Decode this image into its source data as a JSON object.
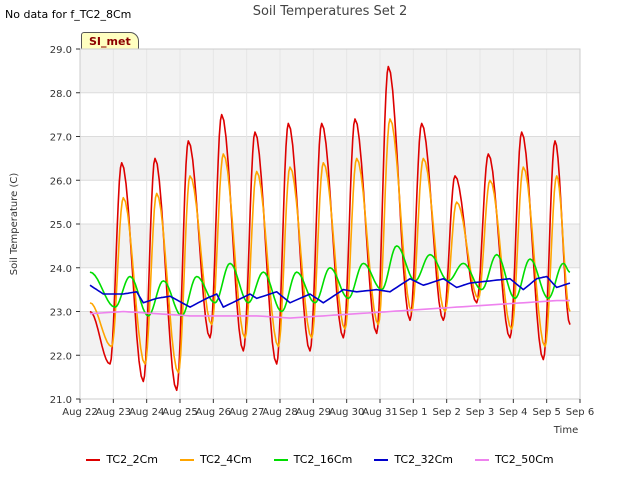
{
  "nodata_text": "No data for f_TC2_8Cm",
  "badge_text": "SI_met",
  "chart_data": {
    "type": "line",
    "title": "Soil Temperatures Set 2",
    "xlabel": "Time",
    "ylabel": "Soil Temperature (C)",
    "ylim": [
      21.0,
      29.0
    ],
    "yticks": [
      "21.0",
      "22.0",
      "23.0",
      "24.0",
      "25.0",
      "26.0",
      "27.0",
      "28.0",
      "29.0"
    ],
    "xticks": [
      "Aug 22",
      "Aug 23",
      "Aug 24",
      "Aug 25",
      "Aug 26",
      "Aug 27",
      "Aug 28",
      "Aug 29",
      "Aug 30",
      "Aug 31",
      "Sep 1",
      "Sep 2",
      "Sep 3",
      "Sep 4",
      "Sep 5",
      "Sep 6"
    ],
    "x_day_offset_start": 0.3,
    "grid": true,
    "legend_position": "bottom",
    "series": [
      {
        "name": "TC2_2Cm",
        "color": "#dd0000",
        "min_days": [
          0.6,
          1.6,
          2.6,
          3.6,
          4.6,
          5.6,
          6.6,
          7.6,
          8.6,
          9.6,
          10.6,
          11.6,
          12.6,
          13.6
        ],
        "min_vals": [
          21.8,
          21.4,
          21.2,
          22.4,
          22.1,
          21.8,
          22.1,
          22.4,
          22.5,
          22.8,
          22.8,
          23.2,
          22.4,
          21.9
        ],
        "max_days": [
          0.95,
          1.95,
          2.95,
          3.95,
          4.95,
          5.95,
          6.95,
          7.95,
          8.95,
          9.95,
          10.95,
          11.95,
          12.95,
          13.95
        ],
        "max_vals": [
          26.4,
          26.5,
          26.9,
          27.5,
          27.1,
          27.3,
          27.3,
          27.4,
          28.6,
          27.3,
          26.1,
          26.6,
          27.1,
          26.9
        ],
        "start": 23.0,
        "end": 22.7
      },
      {
        "name": "TC2_4Cm",
        "color": "#ffa500",
        "min_days": [
          0.65,
          1.65,
          2.65,
          3.65,
          4.65,
          5.65,
          6.65,
          7.65,
          8.65,
          9.65,
          10.65,
          11.65,
          12.65,
          13.65
        ],
        "min_vals": [
          22.2,
          21.8,
          21.6,
          22.7,
          22.4,
          22.2,
          22.4,
          22.6,
          22.7,
          23.0,
          23.0,
          23.3,
          22.6,
          22.2
        ],
        "max_days": [
          1.0,
          2.0,
          3.0,
          4.0,
          5.0,
          6.0,
          7.0,
          8.0,
          9.0,
          10.0,
          11.0,
          12.0,
          13.0,
          14.0
        ],
        "max_vals": [
          25.6,
          25.7,
          26.1,
          26.6,
          26.2,
          26.3,
          26.4,
          26.5,
          27.4,
          26.5,
          25.5,
          26.0,
          26.3,
          26.1
        ],
        "start": 23.2,
        "end": 23.0
      },
      {
        "name": "TC2_16Cm",
        "color": "#00dd00",
        "min_days": [
          0.75,
          1.75,
          2.75,
          3.75,
          4.75,
          5.75,
          6.75,
          7.75,
          8.75,
          9.75,
          10.75,
          11.75,
          12.75,
          13.75
        ],
        "min_vals": [
          23.1,
          22.9,
          22.9,
          23.2,
          23.2,
          23.0,
          23.2,
          23.3,
          23.5,
          23.7,
          23.7,
          23.5,
          23.3,
          23.3
        ],
        "max_days": [
          1.2,
          2.2,
          3.2,
          4.2,
          5.2,
          6.2,
          7.2,
          8.2,
          9.2,
          10.2,
          11.2,
          12.2,
          13.2,
          14.2
        ],
        "max_vals": [
          23.8,
          23.7,
          23.8,
          24.1,
          23.9,
          23.9,
          24.0,
          24.1,
          24.5,
          24.3,
          24.1,
          24.3,
          24.2,
          24.1
        ],
        "start": 23.9,
        "end": 23.9
      },
      {
        "name": "TC2_32Cm",
        "color": "#0000cc",
        "trend_days": [
          0.0,
          0.4,
          1.0,
          1.4,
          1.6,
          2.0,
          2.4,
          3.0,
          3.5,
          3.8,
          4.0,
          4.8,
          5.0,
          5.6,
          6.0,
          6.6,
          7.0,
          7.6,
          8.0,
          8.6,
          9.0,
          9.6,
          10.0,
          10.6,
          11.0,
          11.4,
          12.0,
          12.6,
          13.0,
          13.4,
          13.7,
          14.0,
          14.4
        ],
        "trend_vals": [
          23.6,
          23.4,
          23.4,
          23.45,
          23.2,
          23.3,
          23.35,
          23.1,
          23.3,
          23.4,
          23.1,
          23.4,
          23.3,
          23.45,
          23.2,
          23.4,
          23.2,
          23.5,
          23.45,
          23.5,
          23.45,
          23.75,
          23.6,
          23.75,
          23.55,
          23.65,
          23.7,
          23.75,
          23.5,
          23.75,
          23.8,
          23.55,
          23.65
        ],
        "start": 23.6,
        "end": 23.65
      },
      {
        "name": "TC2_50Cm",
        "color": "#ee82ee",
        "trend_days": [
          0.0,
          1.0,
          2.0,
          3.0,
          4.0,
          5.0,
          6.0,
          7.0,
          8.0,
          9.0,
          10.0,
          11.0,
          12.0,
          13.0,
          14.0,
          14.4
        ],
        "trend_vals": [
          22.95,
          23.0,
          22.95,
          22.9,
          22.9,
          22.9,
          22.85,
          22.9,
          22.95,
          23.0,
          23.05,
          23.1,
          23.15,
          23.2,
          23.25,
          23.25
        ],
        "start": 22.95,
        "end": 23.25
      }
    ]
  }
}
